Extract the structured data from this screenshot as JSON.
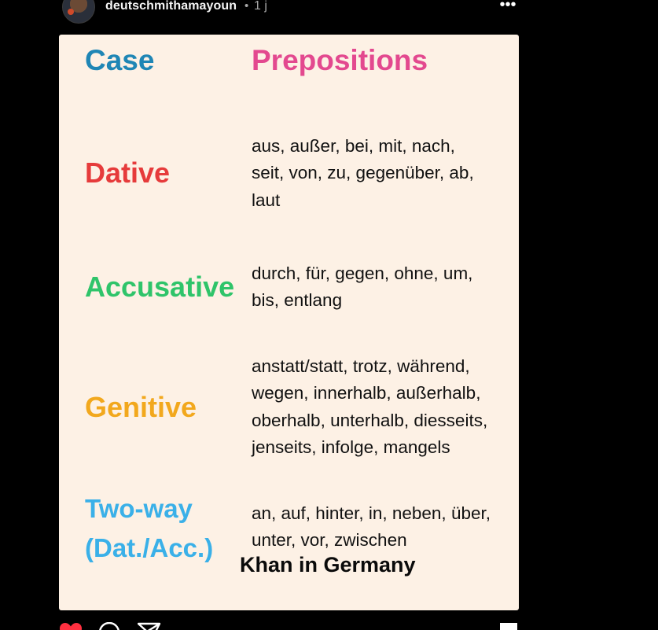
{
  "post": {
    "username": "deutschmithamayoun",
    "separator": "•",
    "time_ago": "1 j",
    "more_label": "•••"
  },
  "image": {
    "header_case": "Case",
    "header_prepositions": "Prepositions",
    "rows": [
      {
        "case": "Dative",
        "color": "#e63b3b",
        "prepositions": "aus, außer, bei, mit, nach,\nseit, von, zu, gegenüber, ab,\nlaut"
      },
      {
        "case": "Accusative",
        "color": "#2fc46a",
        "prepositions": "durch, für, gegen, ohne, um,\nbis, entlang"
      },
      {
        "case": "Genitive",
        "color": "#f2a81d",
        "prepositions": "anstatt/statt, trotz, während,\nwegen, innerhalb, außerhalb,\noberhalb, unterhalb, diesseits,\njenseits, infolge, mangels"
      },
      {
        "case": "Two-way\n(Dat./Acc.)",
        "color": "#3ab0e8",
        "prepositions": "an, auf, hinter, in, neben, über,\nunter, vor, zwischen"
      }
    ],
    "watermark": "Khan in Germany"
  },
  "actions": {
    "icons": [
      "heart-icon",
      "comment-icon",
      "share-icon",
      "bookmark-icon"
    ],
    "liked_color": "#ff3040"
  }
}
